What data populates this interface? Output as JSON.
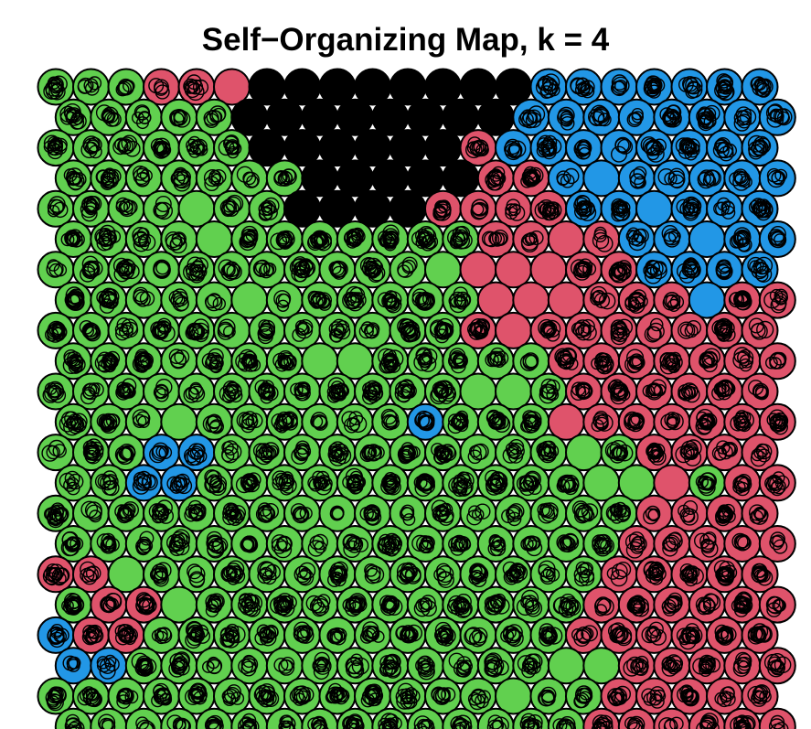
{
  "chart_data": {
    "type": "heatmap",
    "title": "Self−Organizing Map, k = 4",
    "grid": {
      "rows": 22,
      "cols": 21,
      "topology": "hexagonal"
    },
    "legend": [],
    "cluster_colors": {
      "1": "#000000",
      "2": "#61D04F",
      "3": "#DF536B",
      "4": "#2297E6"
    },
    "cluster_by_row": [
      "222333111111114444444",
      "222221111111144444444",
      "222222111111344444444",
      "222222211111334444444",
      "222222211113333444444",
      "222222222222333344444",
      "222222222222333334444",
      "222222222222333333433",
      "222222222222333333333",
      "222222222222223333333",
      "222222222222222333333",
      "222222222242223333333",
      "222442222222222223333",
      "224422222222222223233",
      "222222222222222223333",
      "222222222222222233333",
      "332222222222222233333",
      "233222222222222333333",
      "433222222222222333333",
      "442222222222222233333",
      "222222222222222233333",
      "222222222222222333333"
    ],
    "filled_cells": [
      [
        1,
        0
      ],
      [
        1,
        1
      ],
      [
        1,
        2
      ],
      [
        1,
        3
      ],
      [
        1,
        4
      ],
      [
        1,
        5
      ],
      [
        1,
        6
      ],
      [
        1,
        7
      ],
      [
        1,
        8
      ],
      [
        1,
        9
      ],
      [
        1,
        10
      ],
      [
        1,
        11
      ],
      [
        1,
        12
      ],
      [
        1,
        13
      ],
      [
        1,
        14
      ],
      [
        1,
        15
      ],
      [
        1,
        16
      ],
      [
        1,
        17
      ],
      [
        1,
        18
      ],
      [
        1,
        19
      ],
      [
        1,
        20
      ],
      [
        2,
        0
      ],
      [
        2,
        1
      ],
      [
        2,
        2
      ],
      [
        2,
        3
      ],
      [
        2,
        4
      ],
      [
        2,
        5
      ],
      [
        2,
        6
      ],
      [
        2,
        7
      ],
      [
        2,
        8
      ],
      [
        2,
        9
      ],
      [
        2,
        10
      ],
      [
        2,
        11
      ],
      [
        2,
        12
      ],
      [
        2,
        13
      ],
      [
        2,
        14
      ],
      [
        2,
        15
      ],
      [
        2,
        16
      ],
      [
        2,
        17
      ],
      [
        2,
        18
      ],
      [
        2,
        19
      ],
      [
        2,
        20
      ],
      [
        3,
        0
      ],
      [
        3,
        1
      ],
      [
        3,
        2
      ],
      [
        3,
        3
      ],
      [
        3,
        4
      ],
      [
        3,
        5
      ],
      [
        3,
        6
      ],
      [
        3,
        7
      ],
      [
        3,
        8
      ],
      [
        3,
        9
      ],
      [
        3,
        10
      ],
      [
        3,
        11
      ],
      [
        3,
        12
      ],
      [
        3,
        13
      ],
      [
        3,
        14
      ],
      [
        3,
        15
      ],
      [
        3,
        16
      ],
      [
        3,
        17
      ],
      [
        3,
        18
      ],
      [
        3,
        19
      ],
      [
        3,
        20
      ],
      [
        4,
        0
      ],
      [
        4,
        1
      ],
      [
        4,
        2
      ],
      [
        4,
        3
      ],
      [
        4,
        4
      ],
      [
        4,
        5
      ],
      [
        4,
        6
      ],
      [
        4,
        7
      ],
      [
        4,
        8
      ],
      [
        4,
        9
      ],
      [
        4,
        10
      ],
      [
        4,
        11
      ],
      [
        4,
        12
      ],
      [
        4,
        13
      ],
      [
        4,
        14
      ],
      [
        4,
        15
      ],
      [
        4,
        16
      ],
      [
        4,
        17
      ],
      [
        4,
        18
      ],
      [
        4,
        19
      ],
      [
        4,
        20
      ],
      [
        5,
        0
      ],
      [
        5,
        1
      ],
      [
        5,
        2
      ],
      [
        5,
        3
      ],
      [
        5,
        4
      ],
      [
        5,
        5
      ],
      [
        5,
        6
      ],
      [
        5,
        7
      ],
      [
        5,
        8
      ],
      [
        5,
        9
      ],
      [
        5,
        10
      ],
      [
        5,
        11
      ],
      [
        5,
        12
      ],
      [
        5,
        13
      ],
      [
        5,
        14
      ],
      [
        5,
        15
      ],
      [
        5,
        16
      ],
      [
        5,
        17
      ],
      [
        5,
        18
      ],
      [
        5,
        19
      ],
      [
        5,
        20
      ],
      [
        6,
        0
      ],
      [
        6,
        1
      ],
      [
        6,
        2
      ],
      [
        6,
        3
      ],
      [
        6,
        4
      ],
      [
        6,
        5
      ],
      [
        6,
        6
      ],
      [
        6,
        7
      ],
      [
        6,
        8
      ],
      [
        6,
        9
      ],
      [
        6,
        10
      ],
      [
        6,
        11
      ],
      [
        6,
        12
      ],
      [
        6,
        13
      ],
      [
        6,
        14
      ],
      [
        6,
        15
      ],
      [
        6,
        16
      ],
      [
        6,
        17
      ],
      [
        6,
        18
      ],
      [
        6,
        19
      ],
      [
        6,
        20
      ],
      [
        7,
        0
      ],
      [
        7,
        1
      ],
      [
        7,
        2
      ],
      [
        7,
        3
      ],
      [
        7,
        4
      ],
      [
        7,
        5
      ],
      [
        7,
        6
      ],
      [
        7,
        7
      ],
      [
        7,
        8
      ],
      [
        7,
        9
      ],
      [
        7,
        10
      ],
      [
        7,
        11
      ],
      [
        7,
        12
      ],
      [
        7,
        13
      ],
      [
        7,
        14
      ],
      [
        7,
        15
      ],
      [
        7,
        16
      ],
      [
        7,
        17
      ],
      [
        7,
        18
      ],
      [
        7,
        19
      ],
      [
        7,
        20
      ],
      [
        8,
        0
      ],
      [
        8,
        1
      ],
      [
        8,
        2
      ],
      [
        8,
        3
      ],
      [
        8,
        4
      ],
      [
        8,
        5
      ],
      [
        8,
        6
      ],
      [
        8,
        7
      ],
      [
        8,
        8
      ],
      [
        8,
        9
      ],
      [
        8,
        10
      ],
      [
        8,
        11
      ],
      [
        8,
        12
      ],
      [
        8,
        13
      ],
      [
        8,
        14
      ],
      [
        8,
        15
      ],
      [
        8,
        16
      ],
      [
        8,
        17
      ],
      [
        8,
        18
      ],
      [
        8,
        19
      ],
      [
        8,
        20
      ],
      [
        9,
        0
      ],
      [
        9,
        1
      ],
      [
        9,
        2
      ],
      [
        9,
        3
      ],
      [
        9,
        4
      ],
      [
        9,
        5
      ],
      [
        9,
        6
      ],
      [
        9,
        7
      ],
      [
        9,
        8
      ],
      [
        9,
        9
      ],
      [
        9,
        10
      ],
      [
        9,
        11
      ],
      [
        9,
        12
      ],
      [
        9,
        13
      ],
      [
        9,
        14
      ],
      [
        9,
        15
      ],
      [
        9,
        16
      ],
      [
        9,
        17
      ],
      [
        9,
        18
      ],
      [
        9,
        19
      ],
      [
        9,
        20
      ],
      [
        10,
        0
      ],
      [
        10,
        1
      ],
      [
        10,
        2
      ],
      [
        10,
        3
      ],
      [
        10,
        4
      ],
      [
        10,
        5
      ],
      [
        10,
        6
      ],
      [
        10,
        7
      ],
      [
        10,
        8
      ],
      [
        10,
        9
      ],
      [
        10,
        10
      ],
      [
        10,
        11
      ],
      [
        10,
        12
      ],
      [
        10,
        13
      ],
      [
        10,
        14
      ],
      [
        10,
        15
      ],
      [
        10,
        16
      ],
      [
        10,
        17
      ],
      [
        10,
        18
      ],
      [
        10,
        19
      ],
      [
        10,
        20
      ],
      [
        11,
        0
      ],
      [
        11,
        1
      ],
      [
        11,
        2
      ],
      [
        11,
        3
      ],
      [
        11,
        4
      ],
      [
        11,
        5
      ],
      [
        11,
        6
      ],
      [
        11,
        7
      ],
      [
        11,
        8
      ],
      [
        11,
        9
      ],
      [
        11,
        10
      ],
      [
        11,
        11
      ],
      [
        11,
        12
      ],
      [
        11,
        13
      ],
      [
        11,
        14
      ],
      [
        11,
        15
      ],
      [
        11,
        16
      ],
      [
        11,
        17
      ],
      [
        11,
        18
      ],
      [
        11,
        19
      ],
      [
        11,
        20
      ],
      [
        12,
        0
      ],
      [
        12,
        1
      ],
      [
        12,
        2
      ],
      [
        12,
        3
      ],
      [
        12,
        4
      ],
      [
        12,
        5
      ],
      [
        12,
        6
      ],
      [
        12,
        7
      ],
      [
        12,
        8
      ],
      [
        12,
        9
      ],
      [
        12,
        10
      ],
      [
        12,
        11
      ],
      [
        12,
        12
      ],
      [
        12,
        13
      ],
      [
        12,
        14
      ],
      [
        12,
        15
      ],
      [
        12,
        16
      ],
      [
        12,
        17
      ],
      [
        12,
        18
      ],
      [
        12,
        19
      ],
      [
        12,
        20
      ],
      [
        13,
        0
      ],
      [
        13,
        1
      ],
      [
        13,
        2
      ],
      [
        13,
        3
      ],
      [
        13,
        4
      ],
      [
        13,
        5
      ],
      [
        13,
        6
      ],
      [
        13,
        7
      ],
      [
        13,
        8
      ],
      [
        13,
        9
      ],
      [
        13,
        10
      ],
      [
        13,
        11
      ],
      [
        13,
        12
      ],
      [
        13,
        13
      ],
      [
        13,
        14
      ],
      [
        13,
        15
      ],
      [
        13,
        16
      ],
      [
        13,
        17
      ],
      [
        13,
        18
      ],
      [
        13,
        19
      ],
      [
        13,
        20
      ],
      [
        14,
        0
      ],
      [
        14,
        1
      ],
      [
        14,
        2
      ],
      [
        14,
        3
      ],
      [
        14,
        4
      ],
      [
        14,
        5
      ],
      [
        14,
        6
      ],
      [
        14,
        7
      ],
      [
        14,
        8
      ],
      [
        14,
        9
      ],
      [
        14,
        10
      ],
      [
        14,
        11
      ],
      [
        14,
        12
      ],
      [
        14,
        13
      ],
      [
        14,
        14
      ],
      [
        14,
        15
      ],
      [
        14,
        16
      ],
      [
        14,
        17
      ],
      [
        14,
        18
      ],
      [
        14,
        19
      ],
      [
        14,
        20
      ],
      [
        15,
        0
      ],
      [
        15,
        1
      ],
      [
        15,
        2
      ],
      [
        15,
        3
      ],
      [
        15,
        4
      ],
      [
        15,
        5
      ],
      [
        15,
        6
      ],
      [
        15,
        7
      ],
      [
        15,
        8
      ],
      [
        15,
        9
      ],
      [
        15,
        10
      ],
      [
        15,
        11
      ],
      [
        15,
        12
      ],
      [
        15,
        13
      ],
      [
        15,
        14
      ],
      [
        15,
        15
      ],
      [
        15,
        16
      ],
      [
        15,
        17
      ],
      [
        15,
        18
      ],
      [
        15,
        19
      ],
      [
        15,
        20
      ],
      [
        16,
        0
      ],
      [
        16,
        1
      ],
      [
        16,
        2
      ],
      [
        16,
        3
      ],
      [
        16,
        4
      ],
      [
        16,
        5
      ],
      [
        16,
        6
      ],
      [
        16,
        7
      ],
      [
        16,
        8
      ],
      [
        16,
        9
      ],
      [
        16,
        10
      ],
      [
        16,
        11
      ],
      [
        16,
        12
      ],
      [
        16,
        13
      ],
      [
        16,
        14
      ],
      [
        16,
        15
      ],
      [
        16,
        16
      ],
      [
        16,
        17
      ],
      [
        16,
        18
      ],
      [
        16,
        19
      ],
      [
        16,
        20
      ],
      [
        17,
        0
      ],
      [
        17,
        1
      ],
      [
        17,
        2
      ],
      [
        17,
        3
      ],
      [
        17,
        4
      ],
      [
        17,
        5
      ],
      [
        17,
        6
      ],
      [
        17,
        7
      ],
      [
        17,
        8
      ],
      [
        17,
        9
      ],
      [
        17,
        10
      ],
      [
        17,
        11
      ],
      [
        17,
        12
      ],
      [
        17,
        13
      ],
      [
        17,
        14
      ],
      [
        17,
        15
      ],
      [
        17,
        16
      ],
      [
        17,
        17
      ],
      [
        17,
        18
      ],
      [
        17,
        19
      ],
      [
        17,
        20
      ]
    ],
    "empty_cells": [
      [
        0,
        5
      ],
      [
        0,
        6
      ],
      [
        0,
        7
      ],
      [
        0,
        8
      ],
      [
        0,
        9
      ],
      [
        0,
        10
      ],
      [
        0,
        11
      ],
      [
        1,
        5
      ],
      [
        1,
        6
      ],
      [
        1,
        7
      ],
      [
        1,
        8
      ],
      [
        1,
        9
      ],
      [
        1,
        10
      ],
      [
        2,
        6
      ],
      [
        2,
        7
      ],
      [
        2,
        8
      ],
      [
        2,
        9
      ],
      [
        2,
        10
      ],
      [
        2,
        11
      ],
      [
        3,
        7
      ],
      [
        3,
        8
      ],
      [
        3,
        9
      ],
      [
        3,
        10
      ],
      [
        3,
        15
      ],
      [
        4,
        4
      ],
      [
        4,
        7
      ],
      [
        4,
        8
      ],
      [
        4,
        9
      ],
      [
        4,
        10
      ],
      [
        4,
        17
      ],
      [
        5,
        4
      ],
      [
        5,
        14
      ],
      [
        5,
        18
      ],
      [
        6,
        11
      ],
      [
        6,
        12
      ],
      [
        6,
        13
      ],
      [
        6,
        14
      ],
      [
        7,
        5
      ],
      [
        7,
        12
      ],
      [
        7,
        13
      ],
      [
        7,
        14
      ],
      [
        7,
        18
      ],
      [
        8,
        13
      ],
      [
        9,
        7
      ],
      [
        9,
        8
      ],
      [
        10,
        12
      ],
      [
        10,
        13
      ],
      [
        11,
        3
      ],
      [
        11,
        14
      ],
      [
        12,
        15
      ],
      [
        13,
        15
      ],
      [
        13,
        16
      ],
      [
        13,
        17
      ],
      [
        16,
        2
      ],
      [
        17,
        3
      ],
      [
        19,
        14
      ],
      [
        19,
        15
      ],
      [
        20,
        13
      ]
    ]
  }
}
